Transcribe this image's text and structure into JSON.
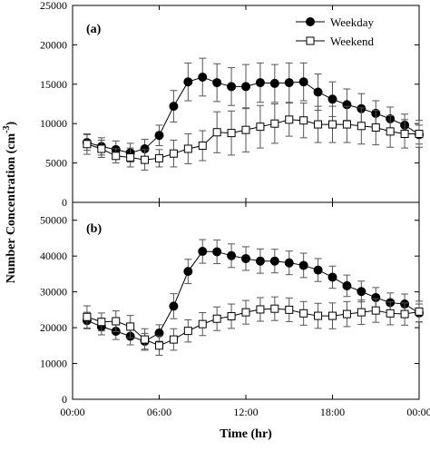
{
  "chart_data": [
    {
      "type": "line",
      "panel_label": "(a)",
      "ylim": [
        0,
        25000
      ],
      "y_ticks": [
        0,
        5000,
        10000,
        15000,
        20000,
        25000
      ],
      "y_tick_labels": [
        "0",
        "5000",
        "10000",
        "15000",
        "20000",
        "25000"
      ],
      "x": [
        1,
        2,
        3,
        4,
        5,
        6,
        7,
        8,
        9,
        10,
        11,
        12,
        13,
        14,
        15,
        16,
        17,
        18,
        19,
        20,
        21,
        22,
        23,
        24
      ],
      "series": [
        {
          "name": "Weekday",
          "marker": "filled-circle",
          "values": [
            7600,
            7100,
            6700,
            6300,
            6800,
            8500,
            12200,
            15300,
            15900,
            15200,
            14700,
            14700,
            15200,
            15100,
            15200,
            15300,
            14000,
            13100,
            12400,
            11900,
            11300,
            10600,
            9800,
            8600
          ],
          "error": [
            1000,
            1100,
            1100,
            1200,
            1200,
            1300,
            2000,
            2400,
            2400,
            2400,
            2400,
            2800,
            2500,
            2400,
            2500,
            2400,
            2300,
            2200,
            2000,
            1900,
            1600,
            1500,
            1400,
            1200
          ]
        },
        {
          "name": "Weekend",
          "marker": "open-square",
          "values": [
            7400,
            6800,
            5900,
            5700,
            5400,
            5600,
            6200,
            6800,
            7200,
            8900,
            8800,
            9200,
            9600,
            10000,
            10500,
            10400,
            9900,
            9900,
            9900,
            9700,
            9500,
            9000,
            8700,
            8700
          ],
          "error": [
            1300,
            1100,
            900,
            1200,
            1300,
            1100,
            1700,
            1900,
            1900,
            2600,
            2800,
            2800,
            2700,
            2500,
            2100,
            2200,
            2300,
            2300,
            2300,
            2300,
            2200,
            2000,
            1800,
            1700
          ]
        }
      ],
      "legend": [
        "Weekday",
        "Weekend"
      ],
      "legend_position": "top-right"
    },
    {
      "type": "line",
      "panel_label": "(b)",
      "ylim": [
        0,
        55000
      ],
      "y_ticks": [
        0,
        10000,
        20000,
        30000,
        40000,
        50000
      ],
      "y_tick_labels": [
        "0",
        "10000",
        "20000",
        "30000",
        "40000",
        "50000"
      ],
      "x": [
        1,
        2,
        3,
        4,
        5,
        6,
        7,
        8,
        9,
        10,
        11,
        12,
        13,
        14,
        15,
        16,
        17,
        18,
        19,
        20,
        21,
        22,
        23,
        24
      ],
      "series": [
        {
          "name": "Weekday",
          "marker": "filled-circle",
          "values": [
            22000,
            20300,
            19000,
            17600,
            16200,
            18500,
            26000,
            35700,
            41300,
            41200,
            40100,
            39300,
            38600,
            38600,
            38100,
            37400,
            36100,
            34100,
            31700,
            30100,
            28400,
            27000,
            26600,
            24100
          ],
          "error": [
            2300,
            2300,
            2300,
            2400,
            2200,
            2300,
            3500,
            3400,
            3300,
            3300,
            3300,
            3300,
            3400,
            3300,
            3300,
            3400,
            3200,
            3100,
            3000,
            2900,
            2800,
            2700,
            2800,
            2500
          ]
        },
        {
          "name": "Weekend",
          "marker": "open-square",
          "values": [
            23000,
            21600,
            21800,
            20300,
            16700,
            15000,
            16700,
            19100,
            21000,
            22500,
            23200,
            24300,
            25100,
            25300,
            25000,
            24000,
            23300,
            23300,
            23800,
            24300,
            24800,
            24000,
            23800,
            24500
          ],
          "error": [
            3100,
            2500,
            2900,
            3100,
            3000,
            2700,
            3000,
            3100,
            3200,
            3300,
            3400,
            3300,
            3300,
            3300,
            3300,
            3300,
            3500,
            3600,
            3500,
            3400,
            3300,
            3200,
            3100,
            2900
          ]
        }
      ]
    }
  ],
  "shared_axes": {
    "ylabel_main": "Number Concentration (cm",
    "ylabel_sup": "-3",
    "ylabel_end": ")",
    "xlabel": "Time (hr)",
    "xlim": [
      0,
      24
    ],
    "x_ticks": [
      0,
      6,
      12,
      18,
      24
    ],
    "x_tick_labels": [
      "00:00",
      "06:00",
      "12:00",
      "18:00",
      "00:00"
    ]
  },
  "colors": {
    "line": "#000000",
    "marker_fill_weekday": "#000000",
    "marker_fill_weekend": "#ffffff",
    "errorbar": "#555555"
  }
}
